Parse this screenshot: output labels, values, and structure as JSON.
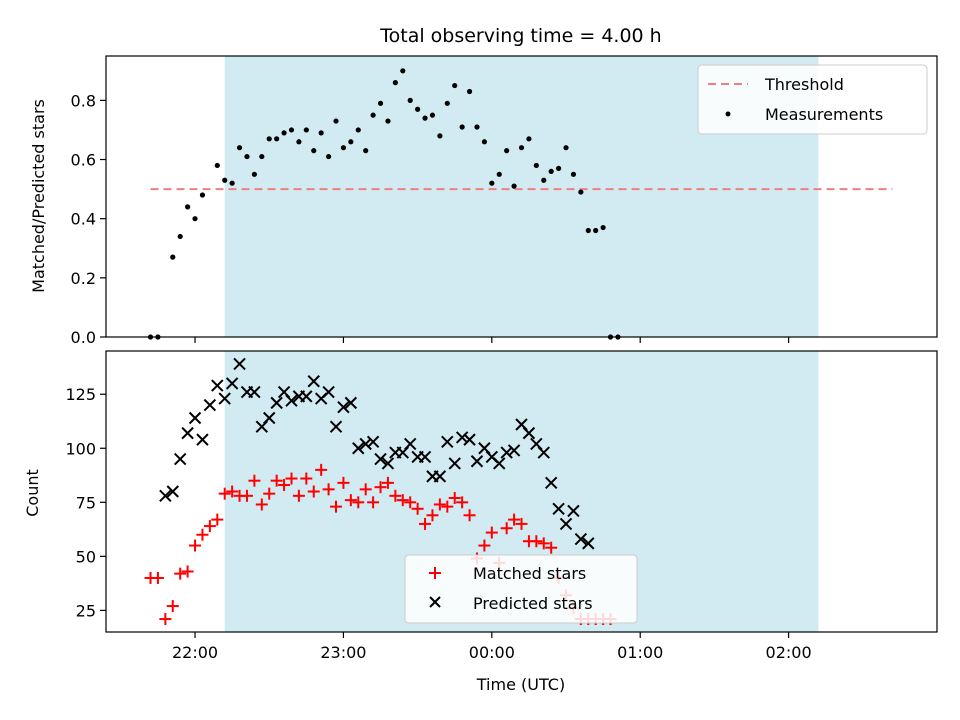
{
  "chart_data": {
    "type": "scatter",
    "title": "Total observing time = 4.00 h",
    "xlabel": "Time (UTC)",
    "x_tick_labels": [
      "22:00",
      "23:00",
      "00:00",
      "01:00",
      "02:00"
    ],
    "x_ticks": [
      "22:00",
      "23:00",
      "00:00",
      "01:00",
      "02:00"
    ],
    "xlim": [
      "21:24",
      "03:00"
    ],
    "observing_window": {
      "start": "22:12",
      "end": "02:12",
      "color": "#add8e6"
    },
    "panels": [
      {
        "ylabel": "Matched/Predicted stars",
        "ylim": [
          0,
          0.95
        ],
        "y_ticks": [
          0.0,
          0.2,
          0.4,
          0.6,
          0.8
        ],
        "y_tick_labels": [
          "0.0",
          "0.2",
          "0.4",
          "0.6",
          "0.8"
        ],
        "threshold": {
          "name": "Threshold",
          "value": 0.5,
          "from": "21:42",
          "to": "02:42",
          "color": "#f08080"
        },
        "series": [
          {
            "name": "Measurements",
            "marker": "dot",
            "color": "#000000",
            "points": [
              [
                "21:42",
                0.0
              ],
              [
                "21:45",
                0.0
              ],
              [
                "21:51",
                0.27
              ],
              [
                "21:54",
                0.34
              ],
              [
                "21:57",
                0.44
              ],
              [
                "22:00",
                0.4
              ],
              [
                "22:03",
                0.48
              ],
              [
                "22:09",
                0.58
              ],
              [
                "22:12",
                0.53
              ],
              [
                "22:15",
                0.52
              ],
              [
                "22:18",
                0.64
              ],
              [
                "22:21",
                0.61
              ],
              [
                "22:24",
                0.55
              ],
              [
                "22:27",
                0.61
              ],
              [
                "22:30",
                0.67
              ],
              [
                "22:33",
                0.67
              ],
              [
                "22:36",
                0.69
              ],
              [
                "22:39",
                0.7
              ],
              [
                "22:42",
                0.66
              ],
              [
                "22:45",
                0.7
              ],
              [
                "22:48",
                0.63
              ],
              [
                "22:51",
                0.69
              ],
              [
                "22:54",
                0.61
              ],
              [
                "22:57",
                0.73
              ],
              [
                "23:00",
                0.64
              ],
              [
                "23:03",
                0.66
              ],
              [
                "23:06",
                0.7
              ],
              [
                "23:09",
                0.63
              ],
              [
                "23:12",
                0.75
              ],
              [
                "23:15",
                0.79
              ],
              [
                "23:18",
                0.73
              ],
              [
                "23:21",
                0.86
              ],
              [
                "23:24",
                0.9
              ],
              [
                "23:27",
                0.8
              ],
              [
                "23:30",
                0.77
              ],
              [
                "23:33",
                0.74
              ],
              [
                "23:36",
                0.75
              ],
              [
                "23:39",
                0.68
              ],
              [
                "23:42",
                0.79
              ],
              [
                "23:45",
                0.85
              ],
              [
                "23:48",
                0.71
              ],
              [
                "23:51",
                0.83
              ],
              [
                "23:54",
                0.71
              ],
              [
                "23:57",
                0.66
              ],
              [
                "00:00",
                0.52
              ],
              [
                "00:03",
                0.55
              ],
              [
                "00:06",
                0.63
              ],
              [
                "00:09",
                0.51
              ],
              [
                "00:12",
                0.64
              ],
              [
                "00:15",
                0.67
              ],
              [
                "00:18",
                0.58
              ],
              [
                "00:21",
                0.53
              ],
              [
                "00:24",
                0.56
              ],
              [
                "00:27",
                0.57
              ],
              [
                "00:30",
                0.64
              ],
              [
                "00:33",
                0.55
              ],
              [
                "00:36",
                0.49
              ],
              [
                "00:39",
                0.36
              ],
              [
                "00:42",
                0.36
              ],
              [
                "00:45",
                0.37
              ],
              [
                "00:48",
                0.0
              ],
              [
                "00:51",
                0.0
              ]
            ]
          }
        ],
        "legend": {
          "position": "top-right",
          "entries": [
            "Threshold",
            "Measurements"
          ]
        }
      },
      {
        "ylabel": "Count",
        "ylim": [
          15,
          145
        ],
        "y_ticks": [
          25,
          50,
          75,
          100,
          125
        ],
        "y_tick_labels": [
          "25",
          "50",
          "75",
          "100",
          "125"
        ],
        "series": [
          {
            "name": "Matched stars",
            "marker": "plus",
            "color": "#ff0000",
            "points": [
              [
                "21:42",
                40
              ],
              [
                "21:45",
                40
              ],
              [
                "21:48",
                21
              ],
              [
                "21:51",
                27
              ],
              [
                "21:54",
                42
              ],
              [
                "21:57",
                43
              ],
              [
                "22:00",
                55
              ],
              [
                "22:03",
                60
              ],
              [
                "22:06",
                64
              ],
              [
                "22:09",
                67
              ],
              [
                "22:12",
                79
              ],
              [
                "22:15",
                80
              ],
              [
                "22:18",
                78
              ],
              [
                "22:21",
                78
              ],
              [
                "22:24",
                85
              ],
              [
                "22:27",
                74
              ],
              [
                "22:30",
                79
              ],
              [
                "22:33",
                85
              ],
              [
                "22:36",
                83
              ],
              [
                "22:39",
                86
              ],
              [
                "22:42",
                78
              ],
              [
                "22:45",
                86
              ],
              [
                "22:48",
                80
              ],
              [
                "22:51",
                90
              ],
              [
                "22:54",
                81
              ],
              [
                "22:57",
                73
              ],
              [
                "23:00",
                84
              ],
              [
                "23:03",
                76
              ],
              [
                "23:06",
                75
              ],
              [
                "23:09",
                81
              ],
              [
                "23:12",
                75
              ],
              [
                "23:15",
                82
              ],
              [
                "23:18",
                84
              ],
              [
                "23:21",
                78
              ],
              [
                "23:24",
                76
              ],
              [
                "23:27",
                75
              ],
              [
                "23:30",
                72
              ],
              [
                "23:33",
                65
              ],
              [
                "23:36",
                69
              ],
              [
                "23:39",
                74
              ],
              [
                "23:42",
                73
              ],
              [
                "23:45",
                77
              ],
              [
                "23:48",
                75
              ],
              [
                "23:51",
                69
              ],
              [
                "23:54",
                49
              ],
              [
                "23:57",
                55
              ],
              [
                "00:00",
                61
              ],
              [
                "00:03",
                47
              ],
              [
                "00:06",
                63
              ],
              [
                "00:09",
                67
              ],
              [
                "00:12",
                65
              ],
              [
                "00:15",
                57
              ],
              [
                "00:18",
                57
              ],
              [
                "00:21",
                56
              ],
              [
                "00:24",
                54
              ],
              [
                "00:27",
                40
              ],
              [
                "00:30",
                32
              ],
              [
                "00:33",
                26
              ],
              [
                "00:36",
                21
              ],
              [
                "00:39",
                21
              ],
              [
                "00:42",
                21
              ],
              [
                "00:45",
                21
              ],
              [
                "00:48",
                21
              ]
            ]
          },
          {
            "name": "Predicted stars",
            "marker": "x",
            "color": "#000000",
            "points": [
              [
                "21:48",
                78
              ],
              [
                "21:51",
                80
              ],
              [
                "21:54",
                95
              ],
              [
                "21:57",
                107
              ],
              [
                "22:00",
                114
              ],
              [
                "22:03",
                104
              ],
              [
                "22:06",
                120
              ],
              [
                "22:09",
                129
              ],
              [
                "22:12",
                123
              ],
              [
                "22:15",
                130
              ],
              [
                "22:18",
                139
              ],
              [
                "22:21",
                126
              ],
              [
                "22:24",
                126
              ],
              [
                "22:27",
                110
              ],
              [
                "22:30",
                114
              ],
              [
                "22:33",
                121
              ],
              [
                "22:36",
                126
              ],
              [
                "22:39",
                122
              ],
              [
                "22:42",
                124
              ],
              [
                "22:45",
                124
              ],
              [
                "22:48",
                131
              ],
              [
                "22:51",
                123
              ],
              [
                "22:54",
                126
              ],
              [
                "22:57",
                110
              ],
              [
                "23:00",
                119
              ],
              [
                "23:03",
                121
              ],
              [
                "23:06",
                100
              ],
              [
                "23:09",
                102
              ],
              [
                "23:12",
                103
              ],
              [
                "23:15",
                95
              ],
              [
                "23:18",
                93
              ],
              [
                "23:21",
                98
              ],
              [
                "23:24",
                98
              ],
              [
                "23:27",
                102
              ],
              [
                "23:30",
                96
              ],
              [
                "23:33",
                96
              ],
              [
                "23:36",
                87
              ],
              [
                "23:39",
                87
              ],
              [
                "23:42",
                103
              ],
              [
                "23:45",
                93
              ],
              [
                "23:48",
                105
              ],
              [
                "23:51",
                104
              ],
              [
                "23:54",
                94
              ],
              [
                "23:57",
                100
              ],
              [
                "00:00",
                96
              ],
              [
                "00:03",
                93
              ],
              [
                "00:06",
                98
              ],
              [
                "00:09",
                99
              ],
              [
                "00:12",
                111
              ],
              [
                "00:15",
                107
              ],
              [
                "00:18",
                102
              ],
              [
                "00:21",
                98
              ],
              [
                "00:24",
                84
              ],
              [
                "00:27",
                72
              ],
              [
                "00:30",
                65
              ],
              [
                "00:33",
                71
              ],
              [
                "00:36",
                58
              ],
              [
                "00:39",
                56
              ]
            ]
          }
        ],
        "legend": {
          "position": "lower-center",
          "entries": [
            "Matched stars",
            "Predicted stars"
          ]
        }
      }
    ]
  }
}
